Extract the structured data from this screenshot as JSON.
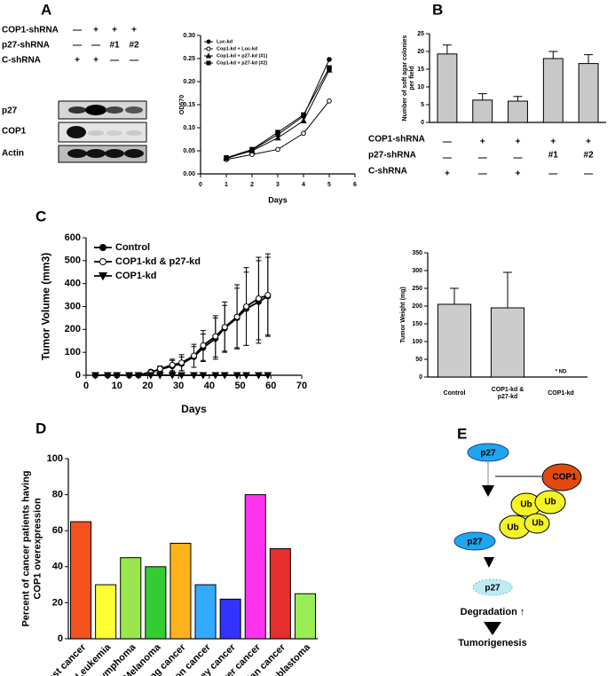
{
  "panels": [
    "A",
    "B",
    "C",
    "D",
    "E"
  ],
  "blot": {
    "conditions": [
      {
        "label": "COP1-shRNA",
        "marks": [
          "—",
          "+",
          "+",
          "+"
        ]
      },
      {
        "label": "p27-shRNA",
        "marks": [
          "—",
          "—",
          "#1",
          "#2"
        ]
      },
      {
        "label": "C-shRNA",
        "marks": [
          "+",
          "+",
          "—",
          "—"
        ]
      }
    ],
    "rows": [
      "p27",
      "COP1",
      "Actin"
    ]
  },
  "chart_data": [
    {
      "type": "line",
      "xlabel": "Days",
      "ylabel": "OD570",
      "x": [
        1,
        2,
        3,
        4,
        5
      ],
      "series": [
        {
          "name": "Luc-kd",
          "color": "#000000",
          "marker": "circle-filled",
          "values": [
            0.033,
            0.052,
            0.085,
            0.125,
            0.248
          ]
        },
        {
          "name": "Cop1-kd + Luc-kd",
          "color": "#000000",
          "marker": "circle-open",
          "values": [
            0.031,
            0.042,
            0.053,
            0.088,
            0.158
          ]
        },
        {
          "name": "Cop1-kd + p27-kd (#1)",
          "color": "#000000",
          "marker": "triangle-up",
          "values": [
            0.034,
            0.05,
            0.078,
            0.115,
            0.225
          ]
        },
        {
          "name": "Cop1-kd + p27-kd (#2)",
          "color": "#000000",
          "marker": "square",
          "values": [
            0.035,
            0.053,
            0.09,
            0.128,
            0.23
          ]
        }
      ],
      "xlim": [
        0,
        6
      ],
      "xticks": [
        0,
        1,
        2,
        3,
        4,
        5,
        6
      ],
      "ylim": [
        0,
        0.3
      ],
      "yticks": [
        {
          "value": 0,
          "label": "0.00"
        },
        0.05,
        {
          "value": 0.1,
          "label": "0.10"
        },
        0.15,
        {
          "value": 0.2,
          "label": "0.20"
        },
        0.25,
        {
          "value": 0.3,
          "label": "0.30"
        }
      ],
      "legend": "upper left"
    },
    {
      "type": "bar",
      "ylabel": "Number of soft agar colonies per field",
      "values": [
        19.3,
        6.3,
        6.0,
        18.0,
        16.6
      ],
      "errors": [
        2.5,
        1.8,
        1.3,
        2.0,
        2.5
      ],
      "color": "#c8c8c8",
      "ylim": [
        0,
        25
      ],
      "yticks": [
        0,
        5,
        10,
        15,
        20,
        25
      ],
      "conditions": [
        {
          "label": "COP1-shRNA",
          "marks": [
            "—",
            "+",
            "+",
            "+",
            "+"
          ]
        },
        {
          "label": "p27-shRNA",
          "marks": [
            "—",
            "—",
            "—",
            "#1",
            "#2"
          ]
        },
        {
          "label": "C-shRNA",
          "marks": [
            "+",
            "—",
            "+",
            "—",
            "—"
          ]
        }
      ]
    },
    {
      "type": "line",
      "xlabel": "Days",
      "ylabel": "Tumor Volume (mm3)",
      "x": [
        3,
        7,
        10,
        14,
        17,
        21,
        24,
        28,
        31,
        35,
        38,
        42,
        45,
        49,
        52,
        56,
        59
      ],
      "series": [
        {
          "name": "Control",
          "color": "#000000",
          "marker": "circle-filled",
          "values": [
            0,
            0,
            0,
            0,
            0,
            15,
            25,
            40,
            50,
            80,
            120,
            160,
            205,
            250,
            290,
            320,
            345
          ],
          "errors": [
            0,
            0,
            0,
            0,
            0,
            8,
            12,
            25,
            30,
            45,
            60,
            90,
            100,
            130,
            160,
            180,
            170
          ]
        },
        {
          "name": "COP1-kd & p27-kd",
          "color": "#000000",
          "marker": "circle-open",
          "values": [
            0,
            0,
            0,
            0,
            0,
            12,
            28,
            45,
            55,
            85,
            130,
            170,
            210,
            255,
            300,
            335,
            350
          ],
          "errors": [
            0,
            0,
            0,
            0,
            0,
            8,
            12,
            25,
            35,
            50,
            65,
            90,
            110,
            140,
            170,
            180,
            180
          ]
        },
        {
          "name": "COP1-kd",
          "color": "#000000",
          "marker": "triangle-down",
          "values": [
            0,
            0,
            0,
            0,
            0,
            0,
            0,
            0,
            0,
            0,
            0,
            0,
            0,
            0,
            0,
            0,
            0
          ]
        }
      ],
      "xlim": [
        0,
        70
      ],
      "xticks": [
        0,
        10,
        20,
        30,
        40,
        50,
        60,
        70
      ],
      "ylim": [
        0,
        600
      ],
      "yticks": [
        0,
        100,
        200,
        300,
        400,
        500,
        600
      ],
      "legend": "upper left"
    },
    {
      "type": "bar",
      "ylabel": "Tumor Weight (mg)",
      "categories": [
        "Control",
        "COP1-kd & p27-kd",
        "COP1-kd"
      ],
      "values": [
        205,
        195,
        null
      ],
      "errors": [
        45,
        100,
        null
      ],
      "color": "#cccccc",
      "annotation": "* ND",
      "ylim": [
        0,
        350
      ],
      "yticks": [
        0,
        50,
        100,
        150,
        200,
        250,
        300,
        350
      ]
    },
    {
      "type": "bar",
      "ylabel": "Percent of cancer patients having COP1 overexpression",
      "categories": [
        "Breast cancer",
        "Leukemia",
        "Lymphoma",
        "Melanoma",
        "Lung cancer",
        "Colon cancer",
        "Kidney cancer",
        "Liver cancer",
        "Ovarian cancer",
        "Glioblastoma"
      ],
      "values": [
        65,
        30,
        45,
        40,
        53,
        30,
        22,
        80,
        50,
        25
      ],
      "colors": [
        "#f4511e",
        "#ffff33",
        "#99e64d",
        "#33cc33",
        "#ffb31a",
        "#33aaff",
        "#3333ff",
        "#ff33ee",
        "#e62e2e",
        "#99ee55"
      ],
      "ylim": [
        0,
        100
      ],
      "yticks": [
        0,
        20,
        40,
        60,
        80,
        100
      ]
    }
  ],
  "diagram": {
    "nodes": [
      "p27",
      "COP1",
      "Ub",
      "Ub",
      "Ub",
      "Ub",
      "p27",
      "p27",
      "Degradation ↑",
      "Tumorigenesis"
    ]
  }
}
